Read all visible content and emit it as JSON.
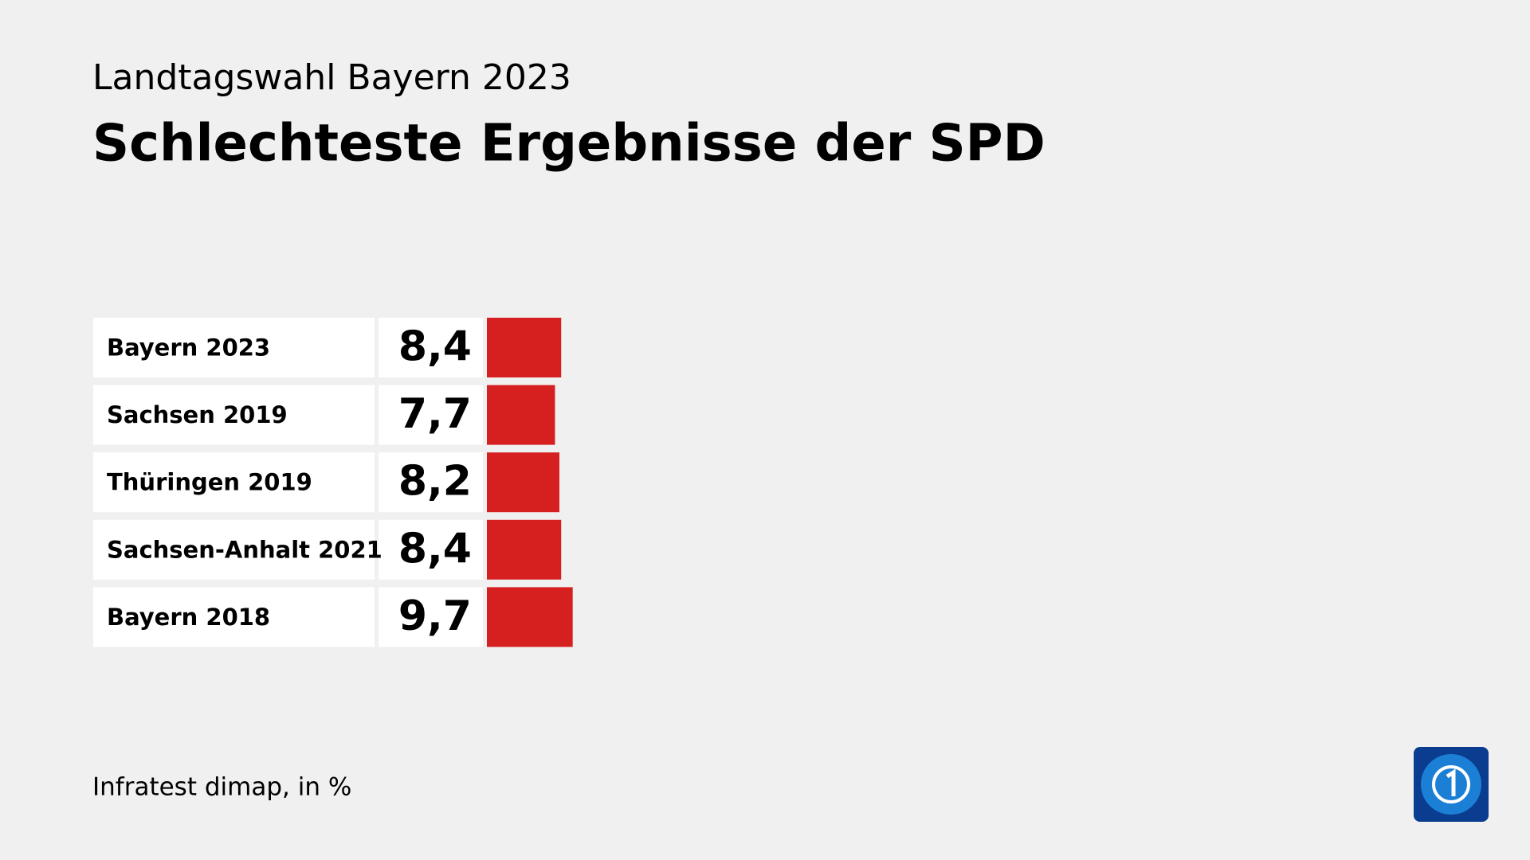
{
  "chart_data": {
    "type": "bar",
    "supertitle": "Landtagswahl Bayern 2023",
    "title": "Schlechteste Ergebnisse der SPD",
    "categories": [
      "Bayern 2023",
      "Sachsen 2019",
      "Thüringen 2019",
      "Sachsen-Anhalt 2021",
      "Bayern 2018"
    ],
    "values": [
      8.4,
      7.7,
      8.2,
      8.4,
      9.7
    ],
    "value_labels": [
      "8,4",
      "7,7",
      "8,2",
      "8,4",
      "9,7"
    ],
    "color": "#d61f1f",
    "source": "Infratest dimap, in %"
  }
}
